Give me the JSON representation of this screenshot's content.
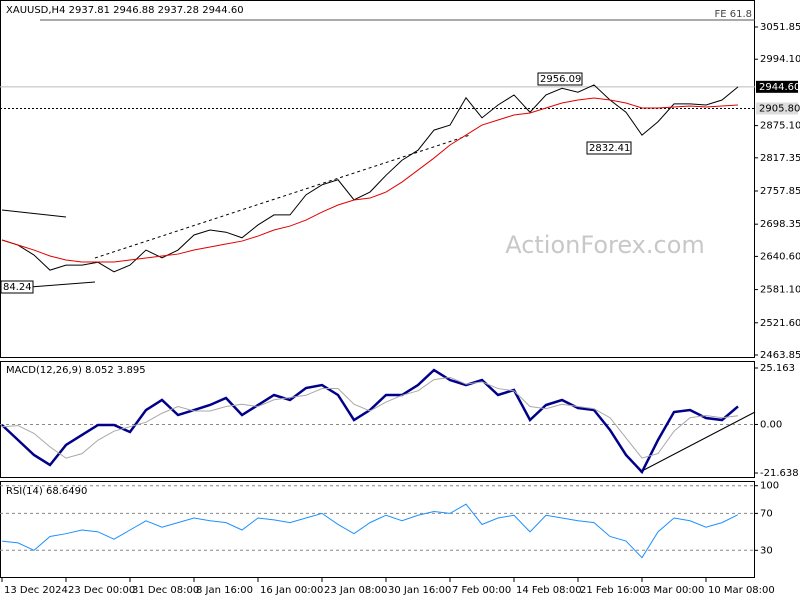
{
  "chart_data": [
    {
      "type": "line",
      "title": "XAUUSD,H4  2937.81 2946.88 2937.28 2944.60",
      "series": [
        {
          "color": "#000000",
          "values": [
            2670,
            2661,
            2643,
            2616,
            2625,
            2625,
            2630,
            2613,
            2625,
            2652,
            2638,
            2652,
            2679,
            2688,
            2684,
            2674,
            2697,
            2715,
            2715,
            2751,
            2769,
            2778,
            2742,
            2756,
            2786,
            2813,
            2831,
            2867,
            2876,
            2925,
            2889,
            2912,
            2930,
            2899,
            2930,
            2942,
            2935,
            2948,
            2921,
            2899,
            2858,
            2882,
            2914,
            2914,
            2912,
            2921,
            2944.6
          ]
        },
        {
          "color": "#e00000",
          "values": [
            2670,
            2661,
            2652,
            2641.3,
            2634.1,
            2630.5,
            2630.5,
            2630.5,
            2634.1,
            2637.7,
            2641.3,
            2644.8,
            2652,
            2657.4,
            2662.8,
            2668.1,
            2677.1,
            2687.9,
            2695,
            2705.8,
            2720.1,
            2732.7,
            2741.7,
            2745.2,
            2756,
            2773.9,
            2795.4,
            2816.9,
            2840.3,
            2858.2,
            2876.1,
            2885.1,
            2894.1,
            2897.7,
            2906.6,
            2915.6,
            2921,
            2924.6,
            2921,
            2915.6,
            2906.6,
            2906.6,
            2908.4,
            2910.2,
            2908.4,
            2910.2,
            2912
          ]
        }
      ],
      "ylim": [
        2458.47,
        3100.25
      ],
      "yticks": [
        3051.85,
        {
          "value": 2994.1,
          "label": "2994.10"
        },
        {
          "value": 2875.1,
          "label": "2875.10"
        },
        2817.35,
        2757.85,
        2698.35,
        {
          "value": 2640.6,
          "label": "2640.60"
        },
        {
          "value": 2581.1,
          "label": "2581.10"
        },
        {
          "value": 2521.6,
          "label": "2521.60"
        },
        2463.85
      ],
      "price_labels": [
        {
          "value": 2944.6,
          "label": "2944.60"
        },
        {
          "value": 2905.8,
          "label": "2905.80"
        }
      ],
      "annotations": [
        "2956.09",
        "2832.41",
        "84.24",
        "FE 61.8"
      ],
      "watermark": "ActionForex.com"
    },
    {
      "type": "line",
      "title": "MACD(12,26,9) 8.052 3.895",
      "series": [
        {
          "color": "#00008b",
          "values": [
            -0.24,
            -6.93,
            -13.61,
            -18.07,
            -9.16,
            -4.7,
            -0.24,
            -0.24,
            -3.36,
            6.44,
            10.9,
            4.21,
            6.44,
            8.67,
            11.79,
            4.21,
            8.67,
            13.13,
            10.9,
            16.25,
            17.58,
            13.13,
            1.98,
            6.44,
            13.13,
            13.13,
            17.58,
            24.27,
            19.81,
            17.58,
            19.81,
            13.13,
            15.36,
            1.98,
            8.67,
            10.9,
            7.33,
            6.44,
            -2.47,
            -13.61,
            -21.19,
            -6.93,
            5.55,
            6.44,
            2.88,
            1.98,
            8.05
          ]
        },
        {
          "color": "#a8a8a8",
          "values": [
            -1,
            -0.5,
            -4,
            -10,
            -15,
            -13,
            -7,
            -3,
            -1,
            1,
            5,
            8,
            6,
            6,
            8,
            9,
            8,
            11,
            12,
            13,
            16,
            16,
            9,
            6,
            10,
            13,
            15,
            20,
            21,
            18,
            19,
            16,
            15,
            8,
            7,
            9,
            8,
            7,
            3,
            -6,
            -15,
            -13,
            -3,
            3,
            4,
            3,
            3.9
          ]
        }
      ],
      "ylim": [
        -23.87,
        27.84
      ],
      "yticks": [
        25.163,
        {
          "value": 0,
          "label": "0.00"
        },
        -21.638
      ]
    },
    {
      "type": "line",
      "title": "RSI(14) 68.6490",
      "categories": [
        "13 Dec 2024",
        null,
        null,
        null,
        "23 Dec 00:00",
        null,
        null,
        null,
        "31 Dec 08:00",
        null,
        null,
        null,
        "8 Jan 16:00",
        null,
        null,
        null,
        "16 Jan 00:00",
        null,
        null,
        null,
        "23 Jan 08:00",
        null,
        null,
        null,
        "30 Jan 16:00",
        null,
        null,
        null,
        "7 Feb 00:00",
        null,
        null,
        null,
        "14 Feb 08:00",
        null,
        null,
        null,
        "21 Feb 16:00",
        null,
        null,
        null,
        "3 Mar 00:00",
        null,
        null,
        null,
        "10 Mar 08:00",
        null,
        null
      ],
      "series": [
        {
          "color": "#1e90ff",
          "values": [
            40,
            38,
            30,
            45,
            48,
            52,
            50,
            42,
            52,
            62,
            55,
            60,
            65,
            62,
            60,
            52,
            65,
            63,
            60,
            65,
            70,
            58,
            48,
            60,
            68,
            62,
            68,
            72,
            70,
            80,
            58,
            65,
            68,
            50,
            68,
            65,
            62,
            60,
            45,
            40,
            22,
            50,
            65,
            62,
            55,
            60,
            68.6
          ]
        }
      ],
      "ylim": [
        0,
        104
      ],
      "yticks": [
        100,
        70,
        30
      ]
    }
  ]
}
